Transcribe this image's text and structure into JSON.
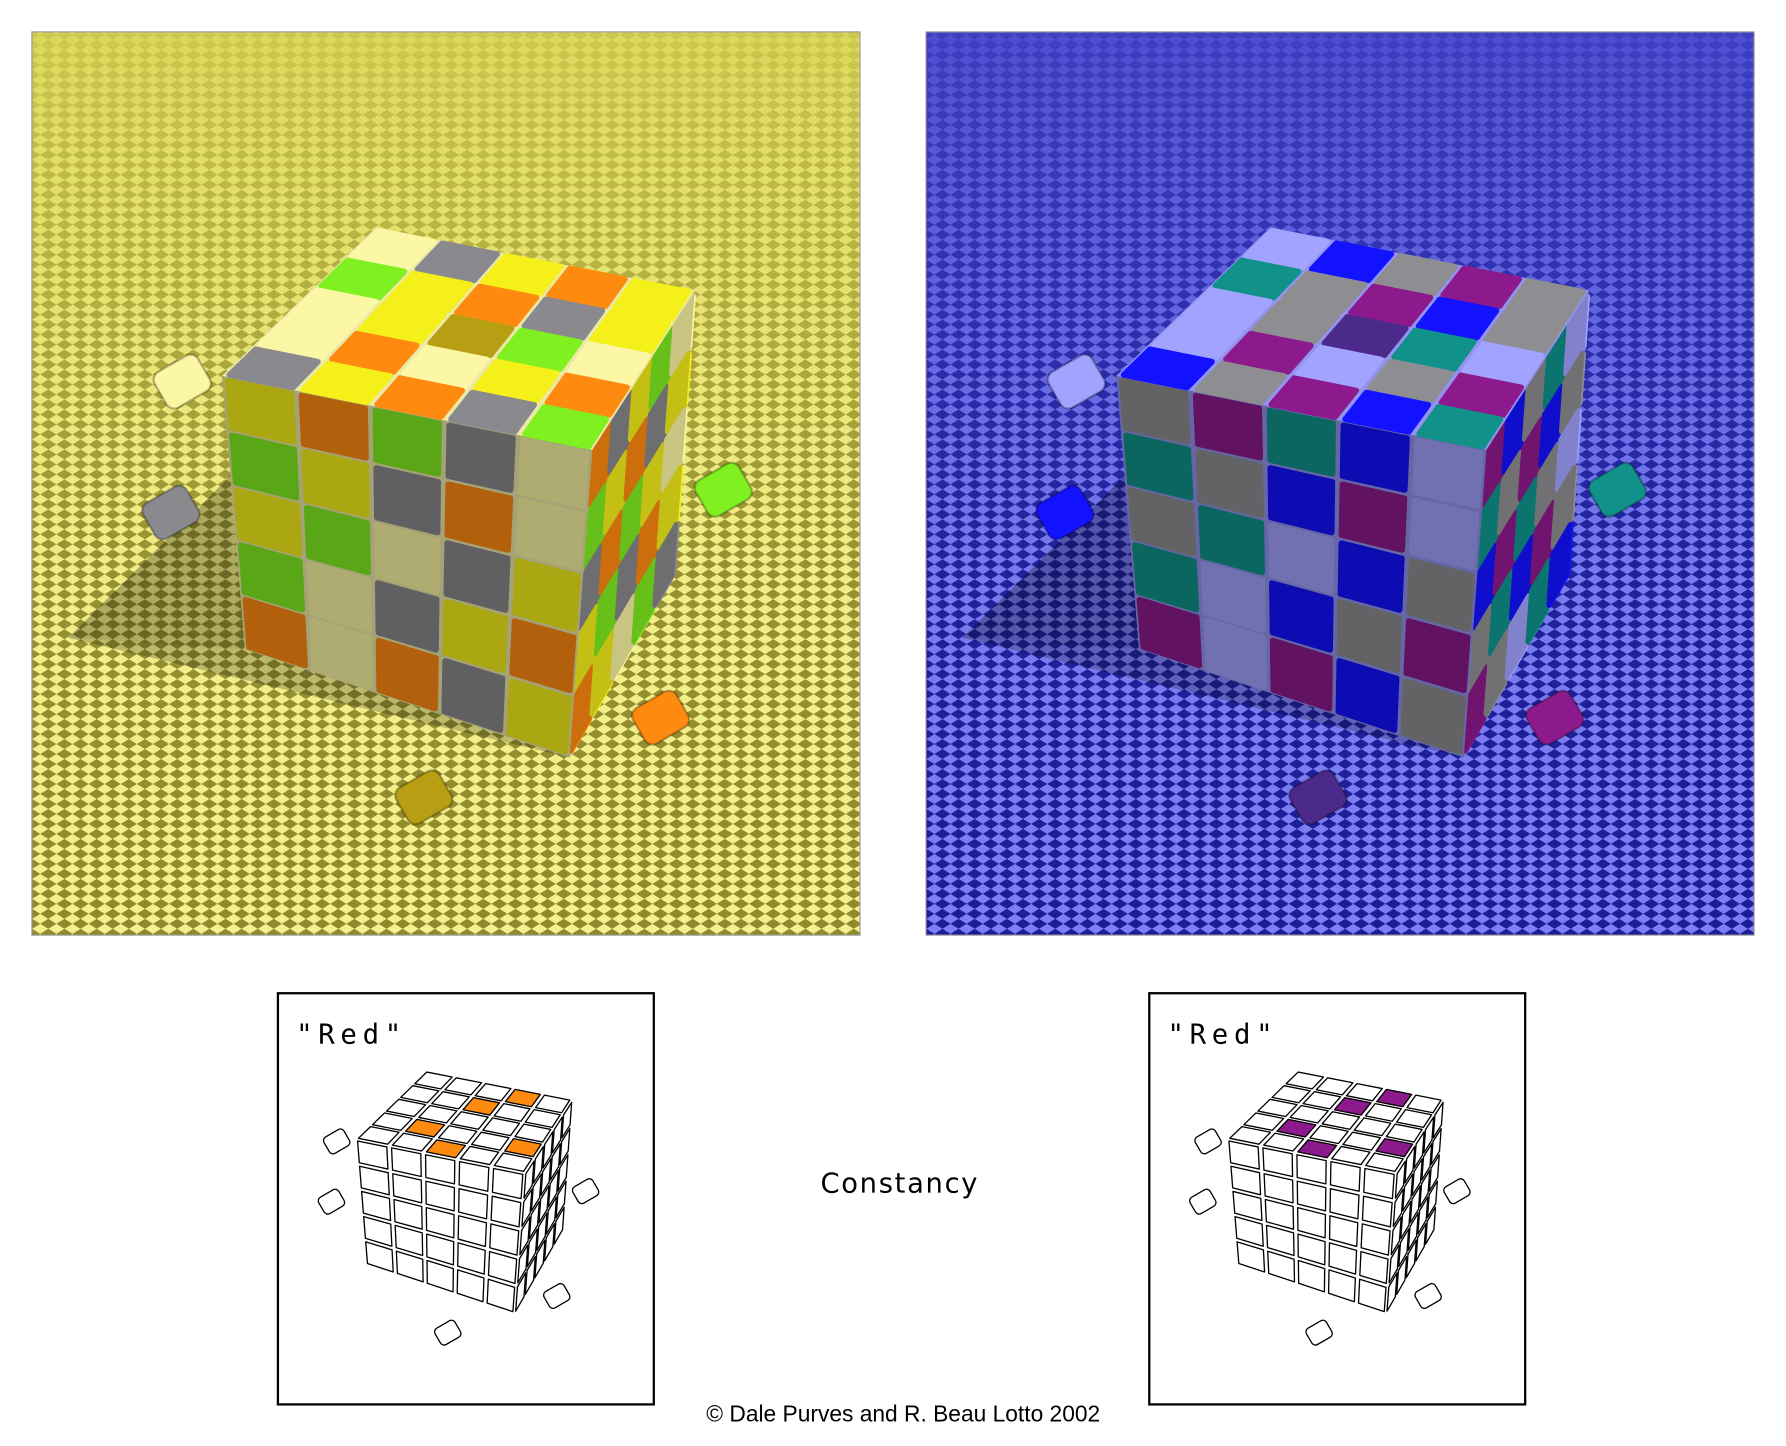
{
  "panels": [
    {
      "label": "\"Red\""
    },
    {
      "label": "\"Red\""
    }
  ],
  "caption": "Constancy",
  "credit": "© Dale Purves and R. Beau Lotto 2002"
}
